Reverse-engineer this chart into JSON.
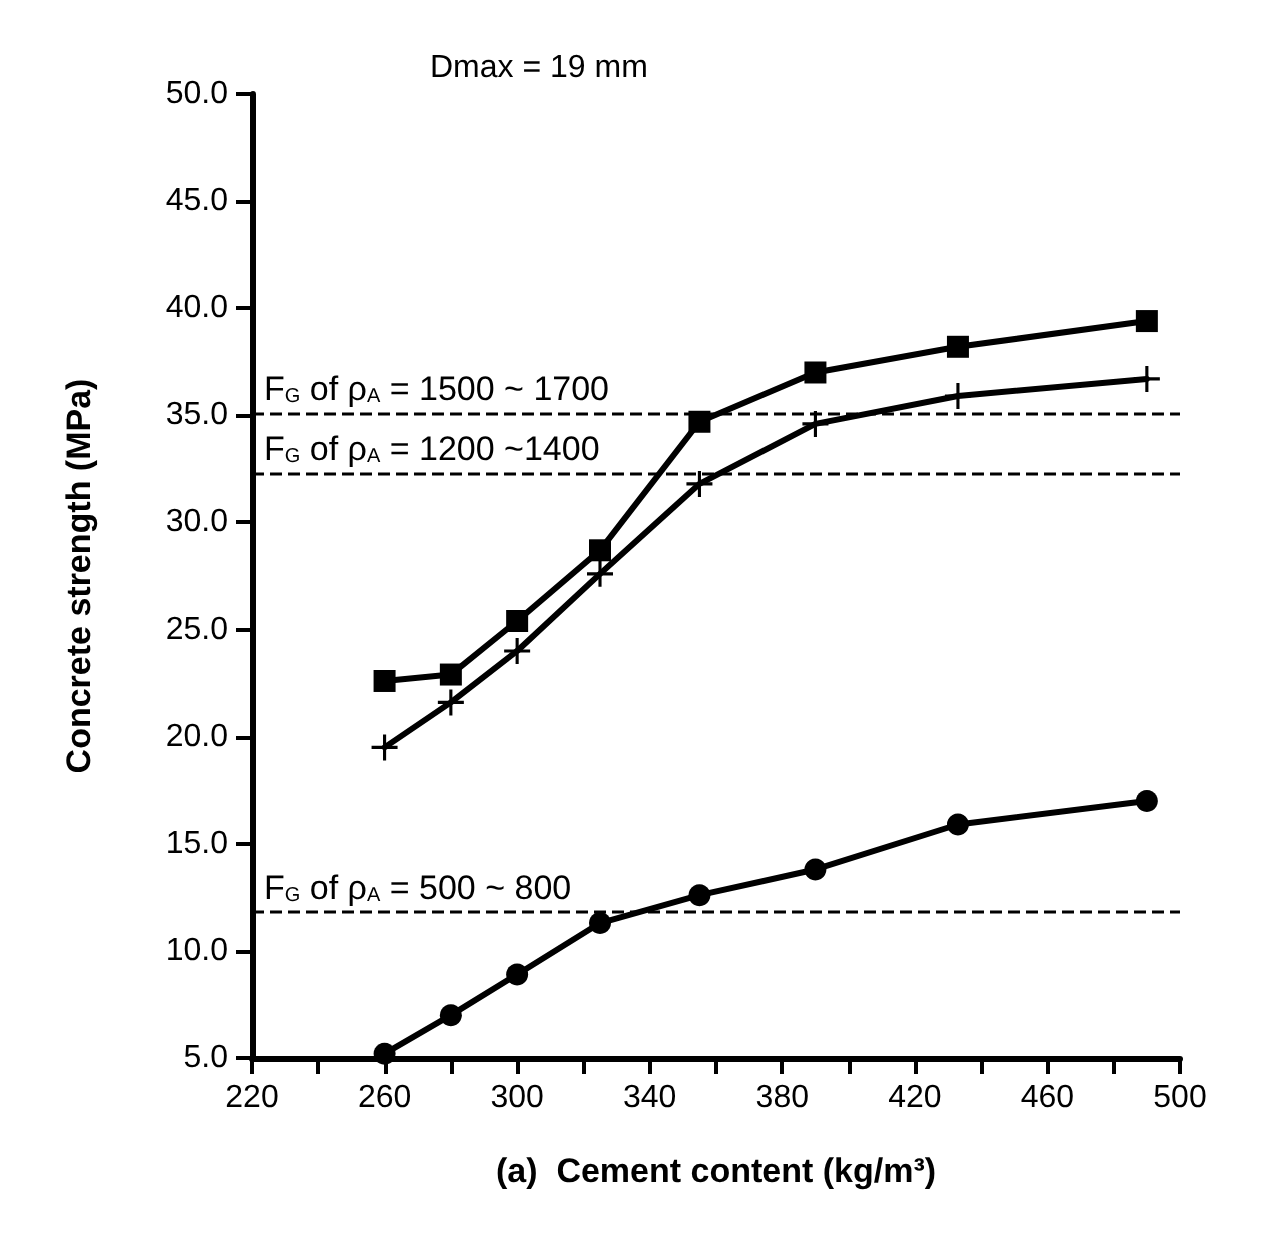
{
  "chart_data": {
    "type": "line",
    "xlabel": "(a)  Cement content (kg/m³)",
    "ylabel": "Concrete strength (MPa)",
    "annotations": [
      "Dmax = 19 mm",
      {
        "text": "F$_{G}$ of ρ$_{A}$ = 1500 ~ 1700",
        "y": 35.1
      },
      {
        "text": "F$_{G}$ of ρ$_{A}$ = 1200 ~1400",
        "y": 32.3
      },
      {
        "text": "F$_{G}$ of ρ$_{A}$ = 500 ~ 800",
        "y": 11.8
      }
    ],
    "x": [
      260,
      280,
      300,
      325,
      355,
      390,
      433,
      490
    ],
    "series": [
      {
        "color": "#000000",
        "marker": "square",
        "values": [
          22.6,
          22.9,
          25.4,
          28.7,
          34.7,
          37.0,
          38.2,
          39.4
        ]
      },
      {
        "color": "#000000",
        "marker": "cross",
        "values": [
          19.5,
          21.6,
          24.0,
          27.6,
          31.8,
          34.6,
          35.9,
          36.7
        ]
      },
      {
        "color": "#000000",
        "marker": "circle",
        "values": [
          5.2,
          7.0,
          8.9,
          11.3,
          12.6,
          13.8,
          15.9,
          17.0
        ]
      }
    ],
    "xlim": [
      220,
      500
    ],
    "xticks": [
      220,
      {
        "value": 240,
        "label": null
      },
      260,
      {
        "value": 280,
        "label": null
      },
      300,
      {
        "value": 320,
        "label": null
      },
      340,
      {
        "value": 360,
        "label": null
      },
      380,
      {
        "value": 400,
        "label": null
      },
      420,
      {
        "value": 440,
        "label": null
      },
      460,
      {
        "value": 480,
        "label": null
      },
      500
    ],
    "ylim": [
      5,
      50
    ],
    "yticks": [
      {
        "value": 5,
        "label": "5.0"
      },
      {
        "value": 10,
        "label": "10.0"
      },
      {
        "value": 15,
        "label": "15.0"
      },
      {
        "value": 20,
        "label": "20.0"
      },
      {
        "value": 25,
        "label": "25.0"
      },
      {
        "value": 30,
        "label": "30.0"
      },
      {
        "value": 35,
        "label": "35.0"
      },
      {
        "value": 40,
        "label": "40.0"
      },
      {
        "value": 45,
        "label": "45.0"
      },
      {
        "value": 50,
        "label": "50.0"
      }
    ],
    "ref_lines": [
      {
        "axis": "y",
        "value": 35.1,
        "color": "#000000",
        "line_style": "dashed"
      },
      {
        "axis": "y",
        "value": 32.3,
        "color": "#000000",
        "line_style": "dashed"
      },
      {
        "axis": "y",
        "value": 11.8,
        "color": "#000000",
        "line_style": "dashed"
      }
    ],
    "grid": false,
    "line_style": "solid"
  }
}
